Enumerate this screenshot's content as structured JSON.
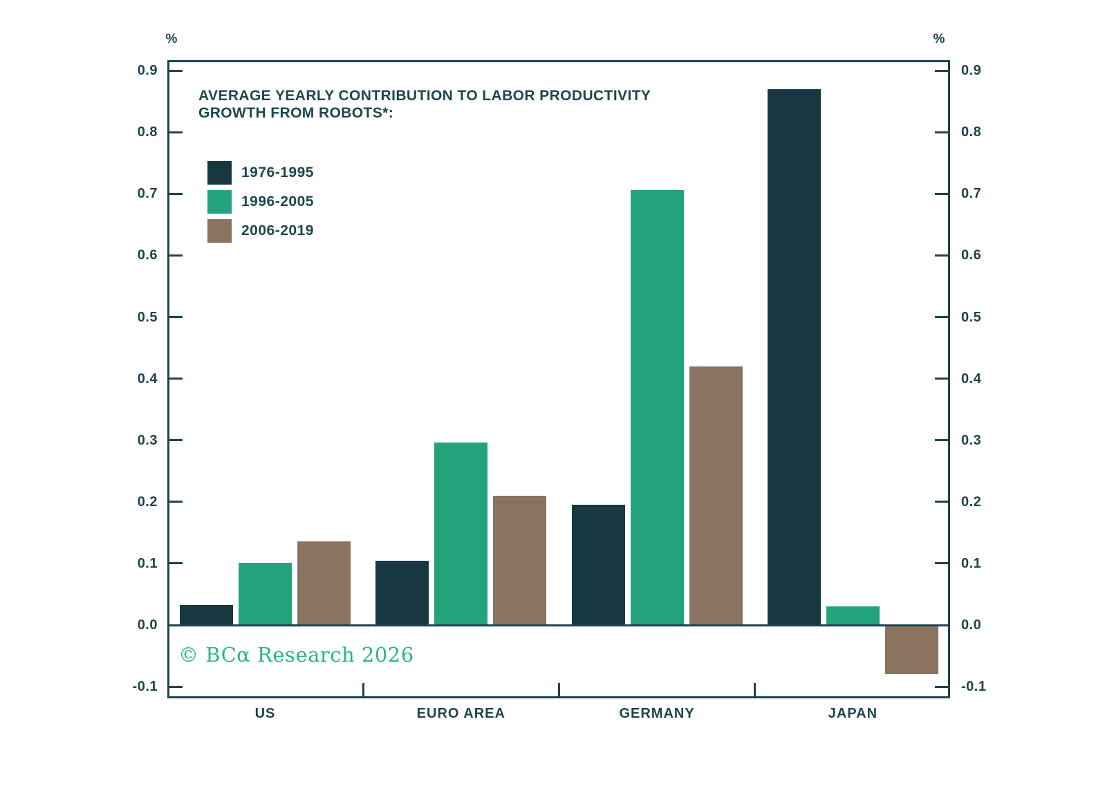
{
  "chart_data": {
    "type": "bar",
    "title_line1": "AVERAGE YEARLY CONTRIBUTION TO LABOR PRODUCTIVITY",
    "title_line2": "GROWTH FROM ROBOTS*:",
    "unit_label": "%",
    "categories": [
      "US",
      "EURO AREA",
      "GERMANY",
      "JAPAN"
    ],
    "series": [
      {
        "name": "1976-1995",
        "color": "#173840",
        "values": [
          0.033,
          0.104,
          0.195,
          0.87
        ]
      },
      {
        "name": "1996-2005",
        "color": "#23A37B",
        "values": [
          0.101,
          0.296,
          0.706,
          0.03
        ]
      },
      {
        "name": "2006-2019",
        "color": "#8A7460",
        "values": [
          0.136,
          0.21,
          0.42,
          -0.08
        ]
      }
    ],
    "yticks": [
      0.9,
      0.8,
      0.7,
      0.6,
      0.5,
      0.4,
      0.3,
      0.2,
      0.1,
      0.0,
      -0.1
    ],
    "ylim": [
      -0.119,
      0.917
    ],
    "dual_y_axes": true,
    "grid": false,
    "legend_position": "top-left",
    "axis_color": "#1E444B",
    "watermark": "© BCα Research 2026",
    "watermark_color": "#2CB489"
  }
}
